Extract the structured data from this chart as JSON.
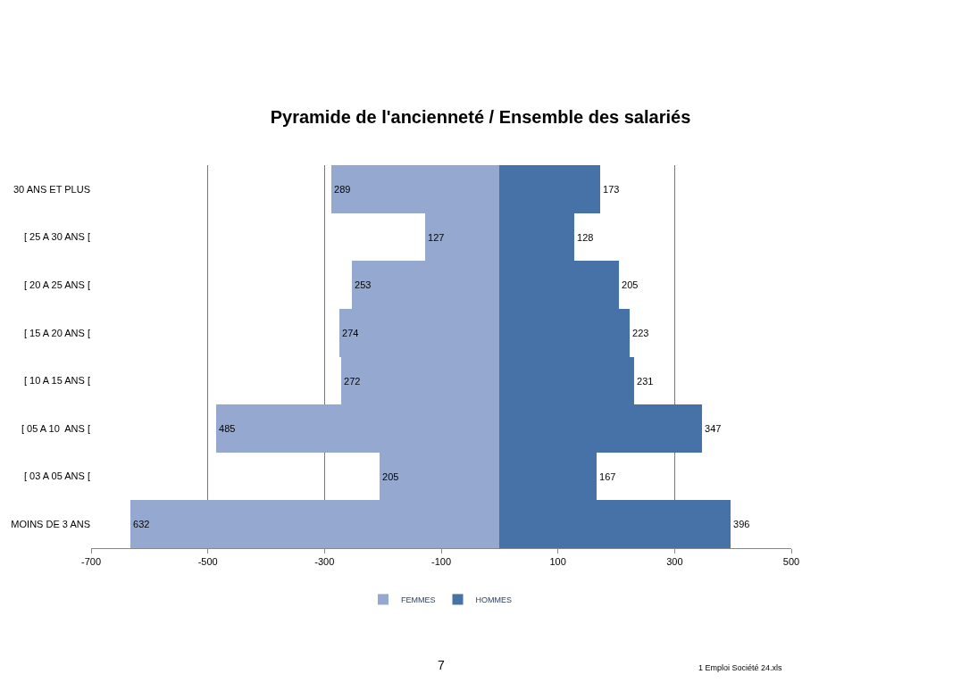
{
  "chart_data": {
    "type": "bar",
    "orientation": "horizontal",
    "title": "Pyramide de l'ancienneté / Ensemble des salariés",
    "categories": [
      "30 ANS ET PLUS",
      "[ 25 A 30 ANS [",
      "[ 20 A 25 ANS [",
      "[ 15 A 20 ANS [",
      "[ 10 A 15 ANS [",
      "[ 05 A 10  ANS [",
      "[ 03 A 05 ANS [",
      "MOINS DE 3 ANS"
    ],
    "series": [
      {
        "name": "FEMMES",
        "color": "#95a9d0",
        "values": [
          289,
          127,
          253,
          274,
          272,
          485,
          205,
          632
        ],
        "base": [
          -289,
          -127,
          -253,
          -274,
          -272,
          -485,
          -205,
          -632
        ]
      },
      {
        "name": "HOMMES",
        "color": "#4672a8",
        "values": [
          173,
          128,
          205,
          223,
          231,
          347,
          167,
          396
        ]
      }
    ],
    "data_labels": true,
    "xlim": [
      -700,
      500
    ],
    "xticks": [
      -700,
      -500,
      -300,
      -100,
      100,
      300,
      500
    ],
    "grid": "x",
    "legend": "bottom",
    "annotations": [
      "7",
      "1 Emploi Société 24.xls"
    ]
  }
}
